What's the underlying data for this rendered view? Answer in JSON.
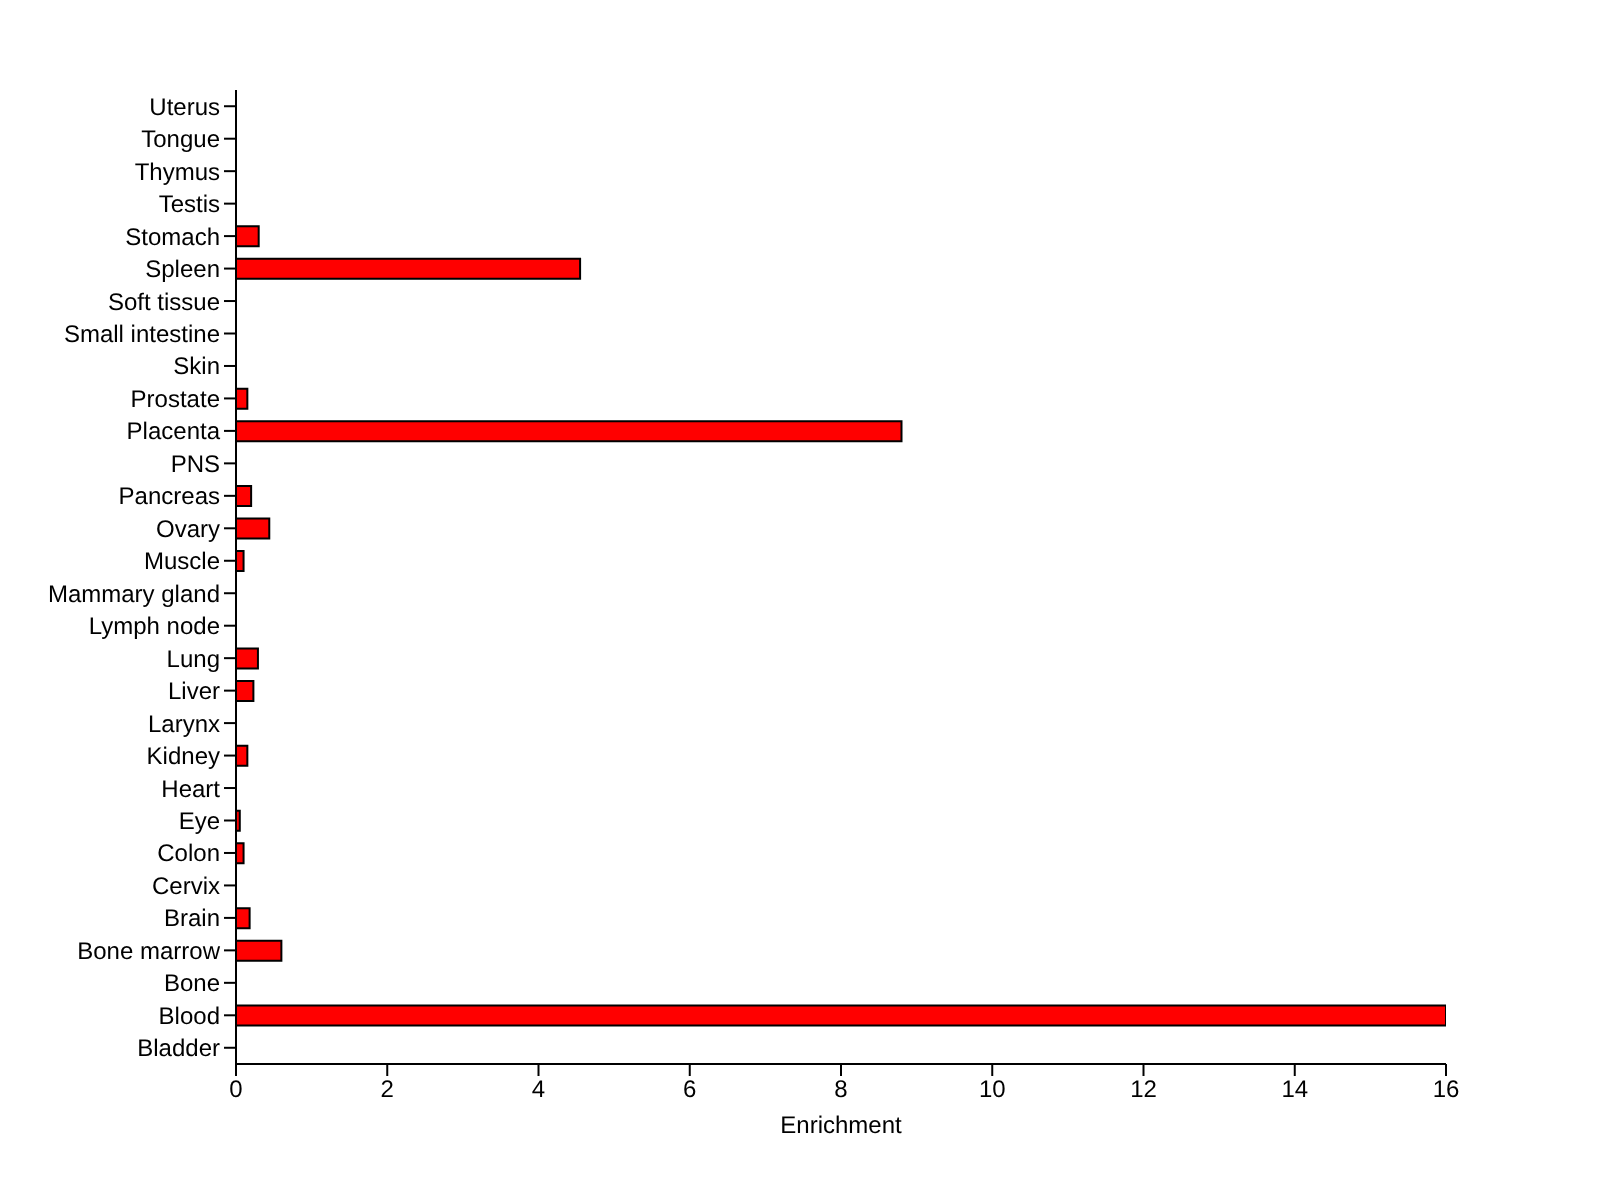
{
  "chart_data": {
    "type": "bar",
    "orientation": "horizontal",
    "xlabel": "Enrichment",
    "categories": [
      "Uterus",
      "Tongue",
      "Thymus",
      "Testis",
      "Stomach",
      "Spleen",
      "Soft tissue",
      "Small intestine",
      "Skin",
      "Prostate",
      "Placenta",
      "PNS",
      "Pancreas",
      "Ovary",
      "Muscle",
      "Mammary gland",
      "Lymph node",
      "Lung",
      "Liver",
      "Larynx",
      "Kidney",
      "Heart",
      "Eye",
      "Colon",
      "Cervix",
      "Brain",
      "Bone marrow",
      "Bone",
      "Blood",
      "Bladder"
    ],
    "values": [
      0,
      0,
      0,
      0,
      0.3,
      4.55,
      0,
      0,
      0,
      0.15,
      8.8,
      0,
      0.2,
      0.44,
      0.1,
      0,
      0,
      0.29,
      0.23,
      0,
      0.15,
      0,
      0.05,
      0.1,
      0,
      0.18,
      0.6,
      0,
      16,
      0
    ],
    "color": "#ff0000",
    "xlim": [
      0,
      16
    ],
    "xticks": [
      0,
      2,
      4,
      6,
      8,
      10,
      12,
      14,
      16
    ],
    "grid": false,
    "legend": false
  }
}
